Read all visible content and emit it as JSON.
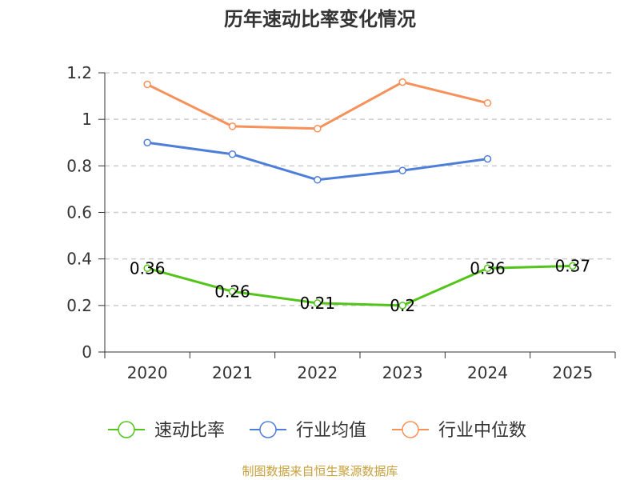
{
  "chart_data": {
    "type": "line",
    "title": "历年速动比率变化情况",
    "categories": [
      "2020",
      "2021",
      "2022",
      "2023",
      "2024",
      "2025"
    ],
    "ylim": [
      0,
      1.2
    ],
    "yticks": [
      "0",
      "0.2",
      "0.4",
      "0.6",
      "0.8",
      "1",
      "1.2"
    ],
    "grid": true,
    "legend_position": "bottom",
    "series": [
      {
        "name": "速动比率",
        "color": "#52c41a",
        "values": [
          0.36,
          0.26,
          0.21,
          0.2,
          0.36,
          0.37
        ],
        "labels": [
          "0.36",
          "0.26",
          "0.21",
          "0.2",
          "0.36",
          "0.37"
        ]
      },
      {
        "name": "行业均值",
        "color": "#4e7fd8",
        "values": [
          0.9,
          0.85,
          0.74,
          0.78,
          0.83,
          null
        ]
      },
      {
        "name": "行业中位数",
        "color": "#f7915a",
        "values": [
          1.15,
          0.97,
          0.96,
          1.16,
          1.07,
          null
        ]
      }
    ]
  },
  "source": {
    "text": "制图数据来自恒生聚源数据库",
    "color": "#c8a03c"
  }
}
